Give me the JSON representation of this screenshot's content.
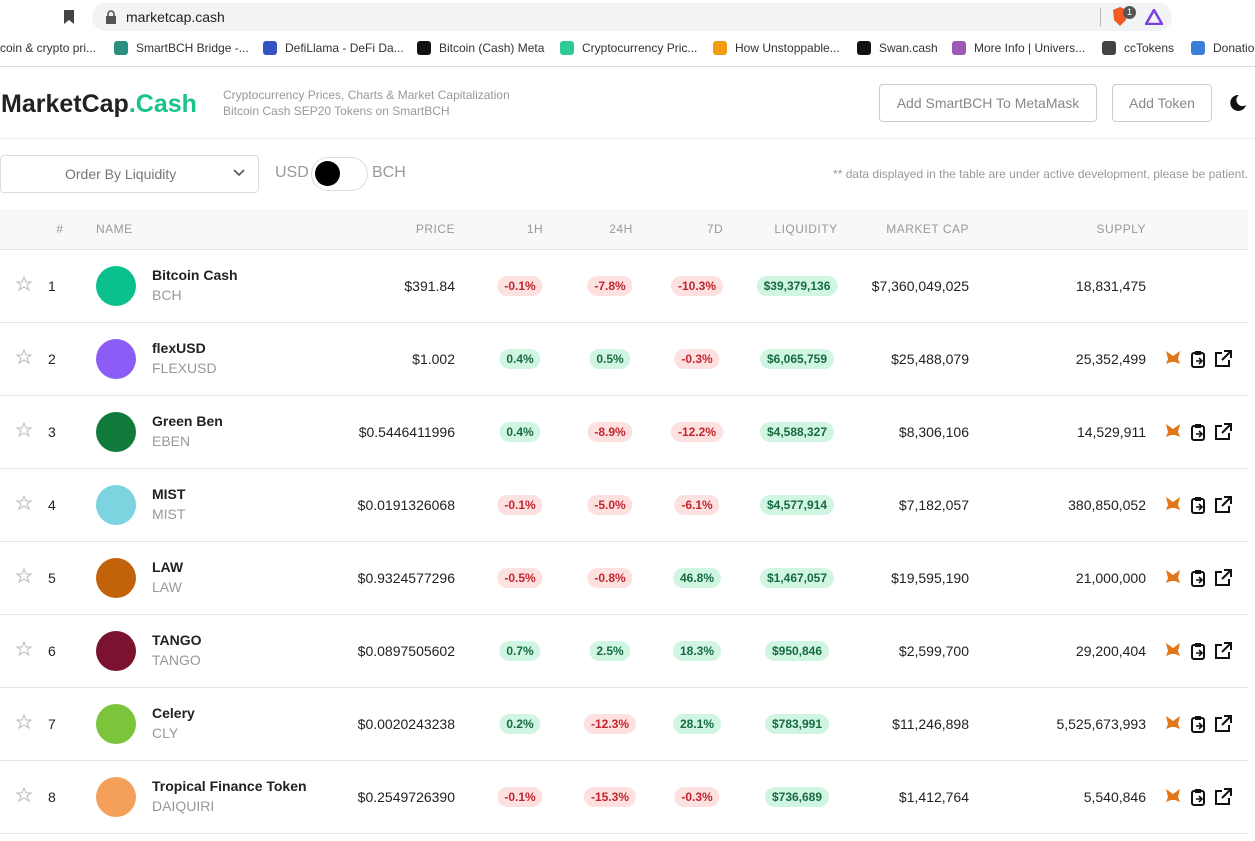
{
  "browser": {
    "url": "marketcap.cash",
    "extension_badge": "1",
    "bookmarks": [
      "coin & crypto pri...",
      "SmartBCH Bridge -...",
      "DefiLlama - DeFi Da...",
      "Bitcoin (Cash) Meta",
      "Cryptocurrency Pric...",
      "How Unstoppable...",
      "Swan.cash",
      "More Info | Univers...",
      "ccTokens",
      "Donatio"
    ]
  },
  "header": {
    "logo": {
      "main": "MarketCap",
      "accent": ".Cash"
    },
    "tagline": [
      "Cryptocurrency Prices, Charts & Market Capitalization",
      "Bitcoin Cash SEP20 Tokens on SmartBCH"
    ],
    "buttons": [
      "Add SmartBCH To MetaMask",
      "Add Token"
    ]
  },
  "controls": {
    "order_select": "Order By Liquidity",
    "currency_left": "USD",
    "currency_right": "BCH",
    "note": "** data displayed in the table are under active development, please be patient."
  },
  "table": {
    "columns": [
      "#",
      "NAME",
      "PRICE",
      "1H",
      "24H",
      "7D",
      "LIQUIDITY",
      "MARKET CAP",
      "SUPPLY"
    ],
    "rows": [
      {
        "rank": 1,
        "name": "Bitcoin Cash",
        "symbol": "BCH",
        "price": "$391.84",
        "change_1h": "-0.1%",
        "change_24h": "-7.8%",
        "change_7d": "-10.3%",
        "liquidity": "$39,379,136",
        "market_cap": "$7,360,049,025",
        "supply": "18,831,475"
      },
      {
        "rank": 2,
        "name": "flexUSD",
        "symbol": "FLEXUSD",
        "price": "$1.002",
        "change_1h": "0.4%",
        "change_24h": "0.5%",
        "change_7d": "-0.3%",
        "liquidity": "$6,065,759",
        "market_cap": "$25,488,079",
        "supply": "25,352,499"
      },
      {
        "rank": 3,
        "name": "Green Ben",
        "symbol": "EBEN",
        "price": "$0.5446411996",
        "change_1h": "0.4%",
        "change_24h": "-8.9%",
        "change_7d": "-12.2%",
        "liquidity": "$4,588,327",
        "market_cap": "$8,306,106",
        "supply": "14,529,911"
      },
      {
        "rank": 4,
        "name": "MIST",
        "symbol": "MIST",
        "price": "$0.0191326068",
        "change_1h": "-0.1%",
        "change_24h": "-5.0%",
        "change_7d": "-6.1%",
        "liquidity": "$4,577,914",
        "market_cap": "$7,182,057",
        "supply": "380,850,052"
      },
      {
        "rank": 5,
        "name": "LAW",
        "symbol": "LAW",
        "price": "$0.9324577296",
        "change_1h": "-0.5%",
        "change_24h": "-0.8%",
        "change_7d": "46.8%",
        "liquidity": "$1,467,057",
        "market_cap": "$19,595,190",
        "supply": "21,000,000"
      },
      {
        "rank": 6,
        "name": "TANGO",
        "symbol": "TANGO",
        "price": "$0.0897505602",
        "change_1h": "0.7%",
        "change_24h": "2.5%",
        "change_7d": "18.3%",
        "liquidity": "$950,846",
        "market_cap": "$2,599,700",
        "supply": "29,200,404"
      },
      {
        "rank": 7,
        "name": "Celery",
        "symbol": "CLY",
        "price": "$0.0020243238",
        "change_1h": "0.2%",
        "change_24h": "-12.3%",
        "change_7d": "28.1%",
        "liquidity": "$783,991",
        "market_cap": "$11,246,898",
        "supply": "5,525,673,993"
      },
      {
        "rank": 8,
        "name": "Tropical Finance Token",
        "symbol": "DAIQUIRI",
        "price": "$0.2549726390",
        "change_1h": "-0.1%",
        "change_24h": "-15.3%",
        "change_7d": "-0.3%",
        "liquidity": "$736,689",
        "market_cap": "$1,412,764",
        "supply": "5,540,846"
      }
    ]
  }
}
